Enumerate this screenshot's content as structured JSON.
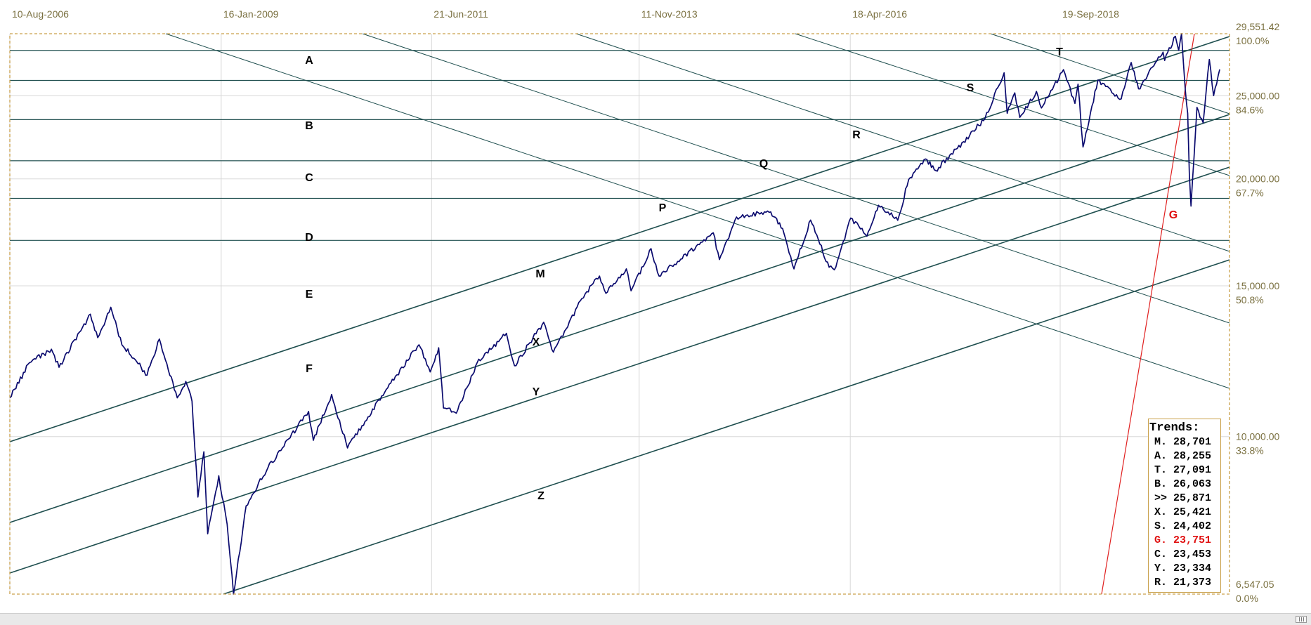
{
  "chart_data": {
    "type": "line",
    "x_labels": [
      "10-Aug-2006",
      "16-Jan-2009",
      "21-Jun-2011",
      "11-Nov-2013",
      "18-Apr-2016",
      "19-Sep-2018"
    ],
    "x_range": [
      "2006-08-10",
      "2020-09-01"
    ],
    "y_range": [
      6547.05,
      29551.42
    ],
    "y_scale": "log",
    "y_ticks": [
      {
        "value": "25,000.00",
        "pct": "84.6%"
      },
      {
        "value": "20,000.00",
        "pct": "67.7%"
      },
      {
        "value": "15,000.00",
        "pct": "50.8%"
      },
      {
        "value": "10,000.00",
        "pct": "33.8%"
      }
    ],
    "y_max": {
      "value": "29,551.42",
      "pct": "100.0%"
    },
    "y_min": {
      "value": "6,547.05",
      "pct": "0.0%"
    },
    "grid": true,
    "series": [
      {
        "values": [
          {
            "x": "2006-08-10",
            "y": 11100
          },
          {
            "x": "2006-11-01",
            "y": 12200
          },
          {
            "x": "2007-02-01",
            "y": 12650
          },
          {
            "x": "2007-03-05",
            "y": 12050
          },
          {
            "x": "2007-07-15",
            "y": 13900
          },
          {
            "x": "2007-08-15",
            "y": 13050
          },
          {
            "x": "2007-10-09",
            "y": 14160
          },
          {
            "x": "2007-11-25",
            "y": 12800
          },
          {
            "x": "2008-01-20",
            "y": 12300
          },
          {
            "x": "2008-03-10",
            "y": 11800
          },
          {
            "x": "2008-05-01",
            "y": 13000
          },
          {
            "x": "2008-07-15",
            "y": 11100
          },
          {
            "x": "2008-08-20",
            "y": 11600
          },
          {
            "x": "2008-09-15",
            "y": 11000
          },
          {
            "x": "2008-10-10",
            "y": 8500
          },
          {
            "x": "2008-11-04",
            "y": 9600
          },
          {
            "x": "2008-11-20",
            "y": 7700
          },
          {
            "x": "2009-01-06",
            "y": 9000
          },
          {
            "x": "2009-02-10",
            "y": 7900
          },
          {
            "x": "2009-03-09",
            "y": 6547
          },
          {
            "x": "2009-05-01",
            "y": 8300
          },
          {
            "x": "2009-08-01",
            "y": 9200
          },
          {
            "x": "2009-10-01",
            "y": 9700
          },
          {
            "x": "2010-01-19",
            "y": 10700
          },
          {
            "x": "2010-02-08",
            "y": 9900
          },
          {
            "x": "2010-04-26",
            "y": 11200
          },
          {
            "x": "2010-07-02",
            "y": 9700
          },
          {
            "x": "2010-09-01",
            "y": 10300
          },
          {
            "x": "2010-12-31",
            "y": 11550
          },
          {
            "x": "2011-04-29",
            "y": 12800
          },
          {
            "x": "2011-06-15",
            "y": 11900
          },
          {
            "x": "2011-07-21",
            "y": 12700
          },
          {
            "x": "2011-08-10",
            "y": 10800
          },
          {
            "x": "2011-10-03",
            "y": 10650
          },
          {
            "x": "2011-12-30",
            "y": 12200
          },
          {
            "x": "2012-05-01",
            "y": 13200
          },
          {
            "x": "2012-06-04",
            "y": 12100
          },
          {
            "x": "2012-10-05",
            "y": 13600
          },
          {
            "x": "2012-11-15",
            "y": 12550
          },
          {
            "x": "2013-03-15",
            "y": 14500
          },
          {
            "x": "2013-05-28",
            "y": 15400
          },
          {
            "x": "2013-06-24",
            "y": 14700
          },
          {
            "x": "2013-09-18",
            "y": 15700
          },
          {
            "x": "2013-10-08",
            "y": 14800
          },
          {
            "x": "2013-12-31",
            "y": 16580
          },
          {
            "x": "2014-02-03",
            "y": 15400
          },
          {
            "x": "2014-09-19",
            "y": 17300
          },
          {
            "x": "2014-10-15",
            "y": 16100
          },
          {
            "x": "2014-12-26",
            "y": 18050
          },
          {
            "x": "2015-05-19",
            "y": 18300
          },
          {
            "x": "2015-07-08",
            "y": 17500
          },
          {
            "x": "2015-08-25",
            "y": 15700
          },
          {
            "x": "2015-11-03",
            "y": 17900
          },
          {
            "x": "2016-01-20",
            "y": 15770
          },
          {
            "x": "2016-02-11",
            "y": 15660
          },
          {
            "x": "2016-04-20",
            "y": 18000
          },
          {
            "x": "2016-06-27",
            "y": 17140
          },
          {
            "x": "2016-08-15",
            "y": 18630
          },
          {
            "x": "2016-11-04",
            "y": 17890
          },
          {
            "x": "2016-12-20",
            "y": 19970
          },
          {
            "x": "2017-03-01",
            "y": 21100
          },
          {
            "x": "2017-04-13",
            "y": 20450
          },
          {
            "x": "2017-08-08",
            "y": 22100
          },
          {
            "x": "2017-11-07",
            "y": 23550
          },
          {
            "x": "2018-01-26",
            "y": 26600
          },
          {
            "x": "2018-02-08",
            "y": 23860
          },
          {
            "x": "2018-03-12",
            "y": 25200
          },
          {
            "x": "2018-04-02",
            "y": 23600
          },
          {
            "x": "2018-06-11",
            "y": 25300
          },
          {
            "x": "2018-07-02",
            "y": 24200
          },
          {
            "x": "2018-10-03",
            "y": 26830
          },
          {
            "x": "2018-11-20",
            "y": 24500
          },
          {
            "x": "2018-12-03",
            "y": 25800
          },
          {
            "x": "2018-12-24",
            "y": 21790
          },
          {
            "x": "2019-02-25",
            "y": 26090
          },
          {
            "x": "2019-06-03",
            "y": 24800
          },
          {
            "x": "2019-07-15",
            "y": 27350
          },
          {
            "x": "2019-08-15",
            "y": 25480
          },
          {
            "x": "2019-11-26",
            "y": 28120
          },
          {
            "x": "2019-12-03",
            "y": 27500
          },
          {
            "x": "2020-01-17",
            "y": 29350
          },
          {
            "x": "2020-01-31",
            "y": 28250
          },
          {
            "x": "2020-02-12",
            "y": 29551
          },
          {
            "x": "2020-02-28",
            "y": 25400
          },
          {
            "x": "2020-03-09",
            "y": 23850
          },
          {
            "x": "2020-03-16",
            "y": 20190
          },
          {
            "x": "2020-03-23",
            "y": 18590
          },
          {
            "x": "2020-04-17",
            "y": 24240
          },
          {
            "x": "2020-05-13",
            "y": 23250
          },
          {
            "x": "2020-06-08",
            "y": 27570
          },
          {
            "x": "2020-06-26",
            "y": 25020
          },
          {
            "x": "2020-07-22",
            "y": 26850
          }
        ]
      }
    ],
    "horizontal_lines": [
      {
        "label": "A",
        "y": 28255
      },
      {
        "label": "B",
        "y": 26063
      },
      {
        "label": "C",
        "y": 23453
      },
      {
        "label": "D",
        "y": 21000
      },
      {
        "label": "E",
        "y": 18980
      },
      {
        "label": "F",
        "y": 16950
      }
    ],
    "trend_line_labels": [
      "T",
      "S",
      "R",
      "Q",
      "P",
      "M",
      "X",
      "Y",
      "Z",
      "G"
    ],
    "trends_legend": {
      "title": "Trends:",
      "rows": [
        {
          "label": "M. 28,701",
          "color": "#000000"
        },
        {
          "label": "A. 28,255",
          "color": "#000000"
        },
        {
          "label": "T. 27,091",
          "color": "#000000"
        },
        {
          "label": "B. 26,063",
          "color": "#000000"
        },
        {
          "label": ">> 25,871",
          "color": "#000000"
        },
        {
          "label": "X. 25,421",
          "color": "#000000"
        },
        {
          "label": "S. 24,402",
          "color": "#000000"
        },
        {
          "label": "G. 23,751",
          "color": "#e01010"
        },
        {
          "label": "C. 23,453",
          "color": "#000000"
        },
        {
          "label": "Y. 23,334",
          "color": "#000000"
        },
        {
          "label": "R. 21,373",
          "color": "#000000"
        }
      ]
    },
    "colors": {
      "price_line": "#0a0a6e",
      "trend_lines": "#1f4f4f",
      "g_line": "#e02020",
      "frame": "#c9a04a",
      "axis_text": "#7a7040"
    }
  }
}
